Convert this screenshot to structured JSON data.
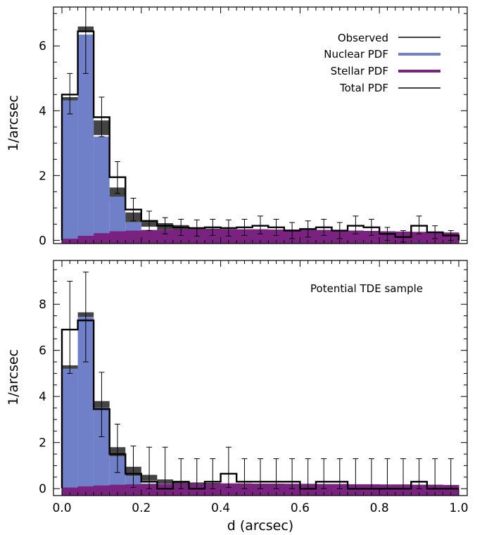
{
  "chart_data": [
    {
      "type": "histogram",
      "panel": "top",
      "title": "",
      "annotation": "",
      "xlabel": "",
      "ylabel": "1/arcsec",
      "xlim": [
        0.0,
        1.0
      ],
      "ylim": [
        -0.1,
        7.2
      ],
      "y_ticks": [
        0,
        2,
        4,
        6
      ],
      "x_ticks": [
        0.0,
        0.2,
        0.4,
        0.6,
        0.8,
        1.0
      ],
      "show_x_tick_labels": false,
      "bin_width": 0.04,
      "bin_centers": [
        0.02,
        0.06,
        0.1,
        0.14,
        0.18,
        0.22,
        0.26,
        0.3,
        0.34,
        0.38,
        0.42,
        0.46,
        0.5,
        0.54,
        0.58,
        0.62,
        0.66,
        0.7,
        0.74,
        0.78,
        0.82,
        0.86,
        0.9,
        0.94,
        0.98
      ],
      "legend": {
        "position": "top-right",
        "entries": [
          {
            "label": "Observed",
            "color": "#000000"
          },
          {
            "label": "Nuclear PDF",
            "color": "#7080c8"
          },
          {
            "label": "Stellar PDF",
            "color": "#7a2280"
          },
          {
            "label": "Total PDF",
            "color": "#444444"
          }
        ]
      },
      "series": [
        {
          "name": "Observed",
          "color": "#000000",
          "values": [
            4.5,
            6.45,
            3.8,
            1.95,
            0.95,
            0.6,
            0.45,
            0.4,
            0.38,
            0.4,
            0.38,
            0.4,
            0.45,
            0.4,
            0.3,
            0.35,
            0.4,
            0.3,
            0.45,
            0.4,
            0.2,
            0.1,
            0.45,
            0.25,
            0.15
          ],
          "err_lo": [
            0.6,
            1.3,
            0.6,
            0.5,
            0.35,
            0.3,
            0.25,
            0.25,
            0.25,
            0.25,
            0.25,
            0.25,
            0.25,
            0.25,
            0.25,
            0.25,
            0.25,
            0.25,
            0.25,
            0.25,
            0.2,
            0.15,
            0.25,
            0.2,
            0.15
          ],
          "err_hi": [
            0.65,
            0.8,
            0.62,
            0.48,
            0.35,
            0.3,
            0.25,
            0.25,
            0.25,
            0.25,
            0.25,
            0.25,
            0.3,
            0.25,
            0.25,
            0.25,
            0.25,
            0.25,
            0.3,
            0.25,
            0.2,
            0.2,
            0.3,
            0.2,
            0.15
          ]
        },
        {
          "name": "Nuclear PDF",
          "color": "#7080c8",
          "values": [
            4.32,
            6.35,
            3.2,
            1.35,
            0.56,
            0.3,
            0.2,
            0.13,
            0.06,
            0.02,
            0.01,
            0,
            0,
            0,
            0,
            0,
            0,
            0,
            0,
            0,
            0,
            0,
            0,
            0,
            0
          ]
        },
        {
          "name": "Stellar PDF",
          "color": "#7a2280",
          "values": [
            0.05,
            0.14,
            0.22,
            0.28,
            0.3,
            0.32,
            0.33,
            0.34,
            0.34,
            0.34,
            0.34,
            0.34,
            0.34,
            0.33,
            0.33,
            0.32,
            0.32,
            0.31,
            0.3,
            0.29,
            0.28,
            0.27,
            0.26,
            0.25,
            0.24
          ]
        },
        {
          "name": "Total PDF",
          "color": "#444444",
          "values": [
            4.42,
            6.6,
            3.7,
            1.63,
            0.86,
            0.62,
            0.53,
            0.47,
            0.4,
            0.36,
            0.35,
            0.34,
            0.34,
            0.33,
            0.33,
            0.32,
            0.32,
            0.31,
            0.3,
            0.29,
            0.28,
            0.27,
            0.26,
            0.25,
            0.24
          ],
          "band_lo": [
            4.3,
            6.45,
            3.25,
            1.2,
            0.56,
            0.42,
            0.33,
            0.25,
            0.2,
            0.2,
            0.2,
            0.2,
            0.2,
            0.2,
            0.2,
            0.2,
            0.2,
            0.2,
            0.2,
            0.2,
            0.2,
            0.2,
            0.2,
            0.2,
            0.2
          ]
        }
      ]
    },
    {
      "type": "histogram",
      "panel": "bottom",
      "title": "",
      "annotation": "Potential TDE sample",
      "xlabel": "d (arcsec)",
      "ylabel": "1/arcsec",
      "xlim": [
        0.0,
        1.0
      ],
      "ylim": [
        -0.3,
        9.9
      ],
      "y_ticks": [
        0,
        2,
        4,
        6,
        8
      ],
      "x_ticks": [
        0.0,
        0.2,
        0.4,
        0.6,
        0.8,
        1.0
      ],
      "x_tick_labels": [
        "0.0",
        "0.2",
        "0.4",
        "0.6",
        "0.8",
        "1.0"
      ],
      "bin_width": 0.04,
      "bin_centers": [
        0.02,
        0.06,
        0.1,
        0.14,
        0.18,
        0.22,
        0.26,
        0.3,
        0.34,
        0.38,
        0.42,
        0.46,
        0.5,
        0.54,
        0.58,
        0.62,
        0.66,
        0.7,
        0.74,
        0.78,
        0.82,
        0.86,
        0.9,
        0.94,
        0.98
      ],
      "series": [
        {
          "name": "Observed",
          "color": "#000000",
          "values": [
            6.9,
            7.3,
            3.45,
            1.5,
            0.65,
            0.3,
            0,
            0.3,
            0,
            0.3,
            0.65,
            0.3,
            0.3,
            0.3,
            0.3,
            0,
            0.3,
            0.3,
            0,
            0,
            0,
            0,
            0.3,
            0,
            0
          ],
          "err_lo": [
            1.9,
            1.8,
            1.2,
            0.8,
            0.6,
            0.3,
            0,
            0.3,
            0,
            0.3,
            0.6,
            0.3,
            0.3,
            0.3,
            0.3,
            0,
            0.3,
            0.3,
            0,
            0,
            0,
            0,
            0.3,
            0,
            0
          ],
          "err_hi": [
            2.1,
            2.1,
            1.6,
            1.3,
            1.2,
            1.5,
            1.8,
            1.0,
            1.3,
            1.0,
            1.15,
            1.0,
            1.0,
            1.0,
            1.0,
            1.3,
            1.0,
            1.0,
            1.3,
            1.3,
            1.3,
            1.3,
            1.0,
            1.3,
            1.3
          ]
        },
        {
          "name": "Nuclear PDF",
          "color": "#7080c8",
          "values": [
            5.2,
            7.45,
            3.5,
            1.4,
            0.55,
            0.22,
            0.1,
            0.05,
            0.02,
            0,
            0,
            0,
            0,
            0,
            0,
            0,
            0,
            0,
            0,
            0,
            0,
            0,
            0,
            0,
            0
          ]
        },
        {
          "name": "Stellar PDF",
          "color": "#7a2280",
          "values": [
            0.05,
            0.1,
            0.14,
            0.17,
            0.19,
            0.2,
            0.21,
            0.21,
            0.21,
            0.21,
            0.21,
            0.21,
            0.21,
            0.21,
            0.21,
            0.2,
            0.2,
            0.2,
            0.19,
            0.19,
            0.18,
            0.18,
            0.17,
            0.17,
            0.16
          ]
        },
        {
          "name": "Total PDF",
          "color": "#444444",
          "values": [
            5.35,
            7.65,
            3.8,
            1.8,
            0.95,
            0.6,
            0.4,
            0.32,
            0.27,
            0.25,
            0.23,
            0.23,
            0.22,
            0.22,
            0.21,
            0.21,
            0.2,
            0.2,
            0.19,
            0.19,
            0.18,
            0.18,
            0.17,
            0.17,
            0.16
          ],
          "band_lo": [
            5.2,
            7.45,
            3.5,
            1.4,
            0.55,
            0.35,
            0.22,
            0.15,
            0.12,
            0.12,
            0.12,
            0.12,
            0.12,
            0.12,
            0.12,
            0.12,
            0.12,
            0.12,
            0.12,
            0.12,
            0.12,
            0.12,
            0.12,
            0.12,
            0.12
          ]
        }
      ]
    }
  ]
}
